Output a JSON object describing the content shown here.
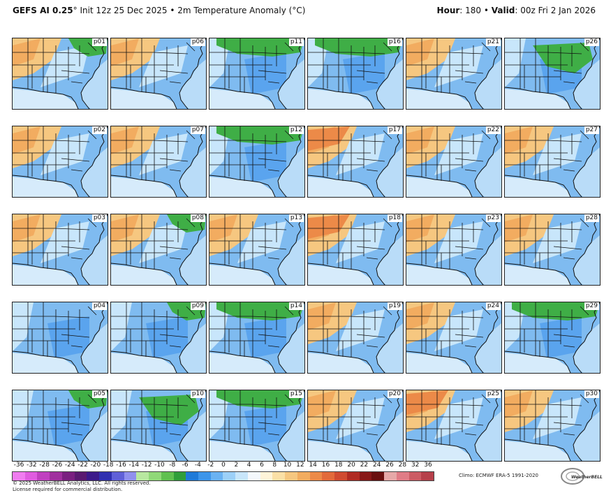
{
  "header": {
    "model": "GEFS AI 0.25",
    "degree": "°",
    "init": "Init 12z 25 Dec 2025",
    "bullet": "•",
    "field": "2m Temperature Anomaly (°C)",
    "hour_label": "Hour",
    "hour_value": ": 180",
    "valid_label": "Valid",
    "valid_value": ": 00z Fri 2 Jan 2026"
  },
  "panels": [
    {
      "label": "p01",
      "tint": "warm-west-green-ne"
    },
    {
      "label": "p06",
      "tint": "warm-west"
    },
    {
      "label": "p11",
      "tint": "green-north"
    },
    {
      "label": "p16",
      "tint": "green-north"
    },
    {
      "label": "p21",
      "tint": "warm-west"
    },
    {
      "label": "p26",
      "tint": "green-central"
    },
    {
      "label": "p02",
      "tint": "warm-west"
    },
    {
      "label": "p07",
      "tint": "warm-west"
    },
    {
      "label": "p12",
      "tint": "green-north"
    },
    {
      "label": "p17",
      "tint": "warm-strong"
    },
    {
      "label": "p22",
      "tint": "warm-west"
    },
    {
      "label": "p27",
      "tint": "warm-west"
    },
    {
      "label": "p03",
      "tint": "warm-west"
    },
    {
      "label": "p08",
      "tint": "warm-west-green-ne"
    },
    {
      "label": "p13",
      "tint": "warm-west"
    },
    {
      "label": "p18",
      "tint": "warm-strong"
    },
    {
      "label": "p23",
      "tint": "warm-west"
    },
    {
      "label": "p28",
      "tint": "warm-west"
    },
    {
      "label": "p04",
      "tint": "cool"
    },
    {
      "label": "p09",
      "tint": "cool-green-ne"
    },
    {
      "label": "p14",
      "tint": "green-north"
    },
    {
      "label": "p19",
      "tint": "warm-west"
    },
    {
      "label": "p24",
      "tint": "warm-west"
    },
    {
      "label": "p29",
      "tint": "green-north"
    },
    {
      "label": "p05",
      "tint": "cool-green-ne"
    },
    {
      "label": "p10",
      "tint": "green-central"
    },
    {
      "label": "p15",
      "tint": "green-north"
    },
    {
      "label": "p20",
      "tint": "warm-west"
    },
    {
      "label": "p25",
      "tint": "warm-strong"
    },
    {
      "label": "p30",
      "tint": "warm-west"
    }
  ],
  "colorbar": {
    "ticks": [
      "-36",
      "-32",
      "-28",
      "-26",
      "-24",
      "-22",
      "-20",
      "-18",
      "-16",
      "-14",
      "-12",
      "-10",
      "-8",
      "-6",
      "-4",
      "-2",
      "0",
      "2",
      "4",
      "6",
      "8",
      "10",
      "12",
      "14",
      "16",
      "18",
      "20",
      "22",
      "24",
      "26",
      "28",
      "32",
      "36"
    ],
    "colors": [
      "#f07cf0",
      "#e05ce0",
      "#c040c0",
      "#a0309e",
      "#7a2080",
      "#5a1a70",
      "#3c1a8a",
      "#3030b0",
      "#6060d8",
      "#9090ee",
      "#b8e8a0",
      "#90d878",
      "#60c050",
      "#2f9e3a",
      "#1f7ad8",
      "#3d95ea",
      "#6ab2f2",
      "#9cd0f8",
      "#c8e6fb",
      "#f4f8fc",
      "#fff4d8",
      "#fbe0a6",
      "#f6c780",
      "#f2ac60",
      "#ec8a48",
      "#e26a3a",
      "#d04a30",
      "#b02a22",
      "#881818",
      "#6a1010",
      "#e6a8a8",
      "#e07c86",
      "#cc5c64",
      "#b6404a"
    ]
  },
  "footer": {
    "copyright": "© 2025 WeatherBELL Analytics, LLC. All rights reserved.",
    "license": "License required for commercial distribution.",
    "climo": "Climo: ECMWF ERA-5 1991-2020",
    "logo_text": "WeatherBELL"
  }
}
